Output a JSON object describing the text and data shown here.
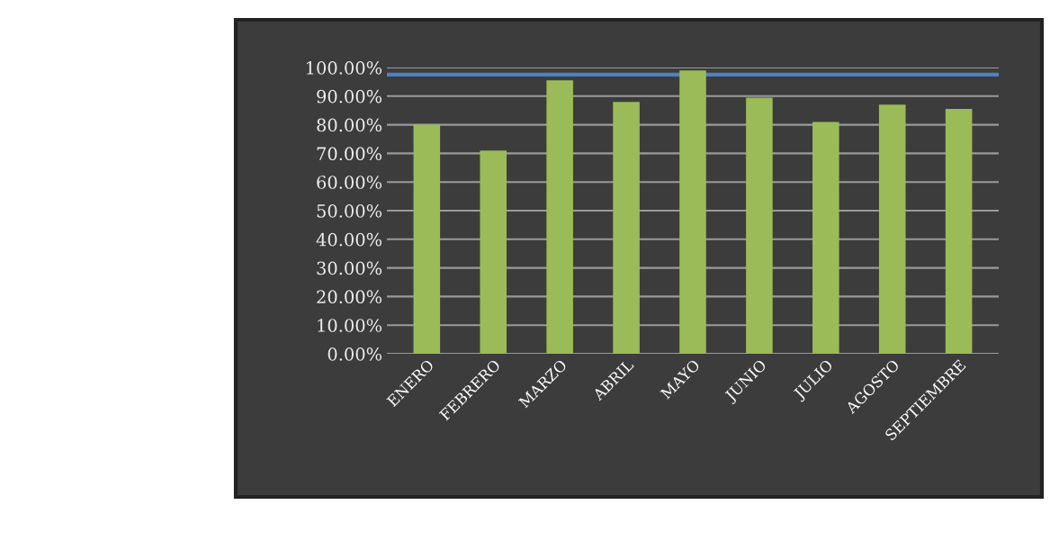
{
  "chart_data": {
    "type": "bar",
    "categories": [
      "ENERO",
      "FEBRERO",
      "MARZO",
      "ABRIL",
      "MAYO",
      "JUNIO",
      "JULIO",
      "AGOSTO",
      "SEPTIEMBRE"
    ],
    "values": [
      80,
      71,
      95.5,
      88,
      99,
      89.5,
      81,
      87,
      85.5
    ],
    "color": "#9bbb59",
    "ylim": [
      0,
      100
    ],
    "yticks": [
      {
        "value": 0,
        "label": "0.00%"
      },
      {
        "value": 10,
        "label": "10.00%"
      },
      {
        "value": 20,
        "label": "20.00%"
      },
      {
        "value": 30,
        "label": "30.00%"
      },
      {
        "value": 40,
        "label": "40.00%"
      },
      {
        "value": 50,
        "label": "50.00%"
      },
      {
        "value": 60,
        "label": "60.00%"
      },
      {
        "value": 70,
        "label": "70.00%"
      },
      {
        "value": 80,
        "label": "80.00%"
      },
      {
        "value": 90,
        "label": "90.00%"
      },
      {
        "value": 100,
        "label": "100.00%"
      }
    ],
    "ref_lines": [
      {
        "axis": "y",
        "value": 97.5,
        "color": "#4f81bd"
      }
    ],
    "grid": "y"
  }
}
